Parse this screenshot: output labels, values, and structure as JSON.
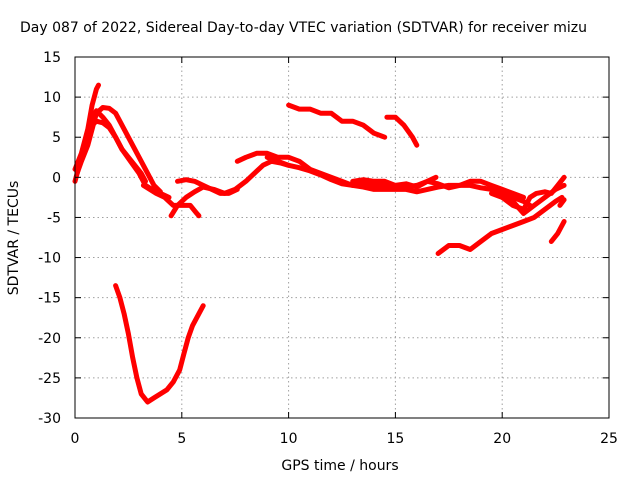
{
  "chart_data": {
    "type": "line",
    "title": "Day 087 of 2022, Sidereal Day-to-day VTEC variation (SDTVAR) for receiver mizu",
    "xlabel": "GPS time / hours",
    "ylabel": "SDTVAR / TECUs",
    "xlim": [
      0,
      25
    ],
    "ylim": [
      -30,
      15
    ],
    "xticks": [
      0,
      5,
      10,
      15,
      20,
      25
    ],
    "yticks": [
      -30,
      -25,
      -20,
      -15,
      -10,
      -5,
      0,
      5,
      10,
      15
    ],
    "grid": true,
    "color": "#ff0000",
    "series": [
      {
        "name": "s1",
        "points": [
          [
            0.0,
            1.0
          ],
          [
            0.3,
            3.0
          ],
          [
            0.6,
            6.0
          ],
          [
            0.8,
            9.0
          ],
          [
            1.0,
            11.0
          ],
          [
            1.1,
            11.5
          ]
        ]
      },
      {
        "name": "s2",
        "points": [
          [
            0.0,
            -0.5
          ],
          [
            0.2,
            1.5
          ],
          [
            0.4,
            3.5
          ],
          [
            0.6,
            5.5
          ],
          [
            0.8,
            7.5
          ],
          [
            1.0,
            8.3
          ],
          [
            1.3,
            7.5
          ],
          [
            1.6,
            6.5
          ],
          [
            1.9,
            5.0
          ],
          [
            2.2,
            3.5
          ],
          [
            2.6,
            2.0
          ],
          [
            3.0,
            0.5
          ],
          [
            3.3,
            -1.0
          ],
          [
            3.6,
            -1.5
          ],
          [
            4.0,
            -2.0
          ],
          [
            4.4,
            -2.5
          ]
        ]
      },
      {
        "name": "s3",
        "points": [
          [
            0.1,
            0.5
          ],
          [
            0.3,
            2.0
          ],
          [
            0.6,
            4.0
          ],
          [
            0.8,
            6.0
          ],
          [
            1.0,
            8.0
          ],
          [
            1.3,
            8.7
          ],
          [
            1.6,
            8.6
          ],
          [
            1.9,
            8.0
          ],
          [
            2.2,
            6.5
          ],
          [
            2.6,
            4.5
          ],
          [
            3.0,
            2.5
          ],
          [
            3.4,
            0.5
          ],
          [
            3.7,
            -1.0
          ],
          [
            4.0,
            -1.8
          ]
        ]
      },
      {
        "name": "s4",
        "points": [
          [
            0.5,
            4.5
          ],
          [
            0.8,
            6.5
          ],
          [
            1.0,
            7.0
          ],
          [
            1.3,
            6.8
          ],
          [
            1.6,
            6.2
          ],
          [
            1.9,
            5.0
          ],
          [
            2.2,
            3.5
          ],
          [
            2.5,
            2.5
          ],
          [
            2.8,
            1.5
          ],
          [
            3.1,
            0.5
          ],
          [
            3.3,
            -0.5
          ]
        ]
      },
      {
        "name": "s5",
        "points": [
          [
            3.2,
            -1.0
          ],
          [
            3.5,
            -1.5
          ],
          [
            3.8,
            -2.0
          ],
          [
            4.2,
            -2.5
          ],
          [
            4.6,
            -3.5
          ],
          [
            5.0,
            -3.5
          ],
          [
            5.4,
            -3.5
          ],
          [
            5.7,
            -4.5
          ],
          [
            5.8,
            -4.8
          ]
        ]
      },
      {
        "name": "s6",
        "points": [
          [
            4.5,
            -4.8
          ],
          [
            4.8,
            -3.5
          ],
          [
            5.2,
            -2.5
          ],
          [
            5.6,
            -1.8
          ],
          [
            6.0,
            -1.2
          ],
          [
            6.5,
            -1.5
          ],
          [
            7.0,
            -2.0
          ],
          [
            7.5,
            -1.5
          ],
          [
            8.0,
            -0.5
          ],
          [
            8.4,
            0.5
          ],
          [
            8.8,
            1.5
          ],
          [
            9.2,
            2.0
          ],
          [
            9.6,
            1.8
          ],
          [
            10.0,
            1.5
          ]
        ]
      },
      {
        "name": "s7",
        "points": [
          [
            4.8,
            -0.5
          ],
          [
            5.2,
            -0.3
          ],
          [
            5.6,
            -0.5
          ],
          [
            6.0,
            -1.0
          ],
          [
            6.4,
            -1.5
          ],
          [
            6.8,
            -2.0
          ],
          [
            7.2,
            -2.0
          ],
          [
            7.6,
            -1.5
          ]
        ]
      },
      {
        "name": "s8",
        "points": [
          [
            7.6,
            2.0
          ],
          [
            8.0,
            2.5
          ],
          [
            8.5,
            3.0
          ],
          [
            9.0,
            3.0
          ],
          [
            9.5,
            2.5
          ],
          [
            10.0,
            2.5
          ],
          [
            10.5,
            2.0
          ],
          [
            11.0,
            1.0
          ],
          [
            11.5,
            0.5
          ],
          [
            12.0,
            0.0
          ],
          [
            12.5,
            -0.5
          ],
          [
            13.0,
            -1.0
          ],
          [
            13.5,
            -1.2
          ],
          [
            14.0,
            -1.5
          ],
          [
            14.5,
            -1.5
          ],
          [
            15.0,
            -1.5
          ],
          [
            15.5,
            -1.5
          ],
          [
            16.0,
            -1.8
          ],
          [
            16.5,
            -1.5
          ],
          [
            17.0,
            -1.2
          ],
          [
            17.5,
            -1.0
          ],
          [
            18.0,
            -1.0
          ],
          [
            18.5,
            -1.0
          ],
          [
            19.0,
            -1.3
          ],
          [
            19.5,
            -1.5
          ],
          [
            20.0,
            -2.0
          ],
          [
            20.5,
            -2.5
          ],
          [
            21.0,
            -3.0
          ],
          [
            21.3,
            -3.5
          ]
        ]
      },
      {
        "name": "s9",
        "points": [
          [
            9.0,
            2.5
          ],
          [
            9.5,
            2.0
          ],
          [
            10.0,
            1.5
          ],
          [
            10.5,
            1.2
          ],
          [
            11.0,
            0.8
          ],
          [
            11.5,
            0.3
          ],
          [
            12.0,
            -0.3
          ],
          [
            12.5,
            -0.8
          ],
          [
            13.0,
            -1.0
          ],
          [
            13.5,
            -0.8
          ],
          [
            14.0,
            -1.0
          ],
          [
            14.5,
            -1.0
          ],
          [
            15.0,
            -1.2
          ],
          [
            15.5,
            -1.2
          ],
          [
            16.0,
            -1.0
          ],
          [
            16.5,
            -0.5
          ],
          [
            17.0,
            -0.8
          ],
          [
            17.5,
            -1.3
          ],
          [
            18.0,
            -1.0
          ],
          [
            18.5,
            -0.5
          ],
          [
            19.0,
            -0.5
          ],
          [
            19.5,
            -1.0
          ],
          [
            20.0,
            -1.5
          ],
          [
            20.5,
            -2.0
          ],
          [
            21.0,
            -2.5
          ]
        ]
      },
      {
        "name": "s10",
        "points": [
          [
            13.0,
            -0.5
          ],
          [
            13.5,
            -0.3
          ],
          [
            14.0,
            -0.5
          ],
          [
            14.5,
            -0.5
          ],
          [
            15.0,
            -1.0
          ],
          [
            15.5,
            -0.8
          ],
          [
            16.0,
            -1.2
          ],
          [
            16.5,
            -0.5
          ],
          [
            16.9,
            0.0
          ]
        ]
      },
      {
        "name": "s11",
        "points": [
          [
            10.0,
            9.0
          ],
          [
            10.5,
            8.5
          ],
          [
            11.0,
            8.5
          ],
          [
            11.5,
            8.0
          ],
          [
            12.0,
            8.0
          ],
          [
            12.5,
            7.0
          ],
          [
            13.0,
            7.0
          ],
          [
            13.5,
            6.5
          ],
          [
            14.0,
            5.5
          ],
          [
            14.5,
            5.0
          ]
        ]
      },
      {
        "name": "s12",
        "points": [
          [
            14.6,
            7.5
          ],
          [
            15.0,
            7.5
          ],
          [
            15.4,
            6.5
          ],
          [
            15.8,
            5.0
          ],
          [
            16.0,
            4.0
          ]
        ]
      },
      {
        "name": "s13",
        "points": [
          [
            17.0,
            -9.5
          ],
          [
            17.5,
            -8.5
          ],
          [
            18.0,
            -8.5
          ],
          [
            18.5,
            -9.0
          ],
          [
            19.0,
            -8.0
          ],
          [
            19.5,
            -7.0
          ],
          [
            20.0,
            -6.5
          ],
          [
            20.5,
            -6.0
          ],
          [
            21.0,
            -5.5
          ],
          [
            21.5,
            -5.0
          ],
          [
            22.0,
            -4.0
          ],
          [
            22.5,
            -3.0
          ],
          [
            22.8,
            -2.5
          ]
        ]
      },
      {
        "name": "s14",
        "points": [
          [
            20.0,
            -2.5
          ],
          [
            20.5,
            -3.0
          ],
          [
            21.0,
            -4.5
          ],
          [
            21.5,
            -3.5
          ],
          [
            22.0,
            -2.5
          ],
          [
            22.5,
            -1.5
          ],
          [
            22.9,
            -1.0
          ]
        ]
      },
      {
        "name": "s15",
        "points": [
          [
            19.5,
            -2.0
          ],
          [
            20.0,
            -2.5
          ],
          [
            20.5,
            -3.5
          ],
          [
            21.0,
            -4.0
          ],
          [
            21.3,
            -2.5
          ],
          [
            21.6,
            -2.0
          ],
          [
            22.0,
            -1.8
          ],
          [
            22.3,
            -2.0
          ],
          [
            22.6,
            -1.0
          ],
          [
            22.9,
            0.0
          ]
        ]
      },
      {
        "name": "s16",
        "points": [
          [
            22.3,
            -8.0
          ],
          [
            22.6,
            -7.0
          ],
          [
            22.9,
            -5.5
          ]
        ]
      },
      {
        "name": "s17",
        "points": [
          [
            22.7,
            -3.5
          ],
          [
            22.9,
            -2.8
          ]
        ]
      },
      {
        "name": "s18",
        "points": [
          [
            1.9,
            -13.5
          ],
          [
            2.1,
            -15.0
          ],
          [
            2.3,
            -17.0
          ],
          [
            2.5,
            -19.5
          ],
          [
            2.7,
            -22.5
          ],
          [
            2.9,
            -25.0
          ],
          [
            3.1,
            -27.0
          ],
          [
            3.4,
            -28.0
          ],
          [
            3.7,
            -27.5
          ],
          [
            4.0,
            -27.0
          ],
          [
            4.3,
            -26.5
          ],
          [
            4.6,
            -25.5
          ],
          [
            4.9,
            -24.0
          ],
          [
            5.1,
            -22.0
          ],
          [
            5.3,
            -20.0
          ],
          [
            5.5,
            -18.5
          ],
          [
            5.8,
            -17.0
          ],
          [
            6.0,
            -16.0
          ]
        ]
      }
    ]
  }
}
